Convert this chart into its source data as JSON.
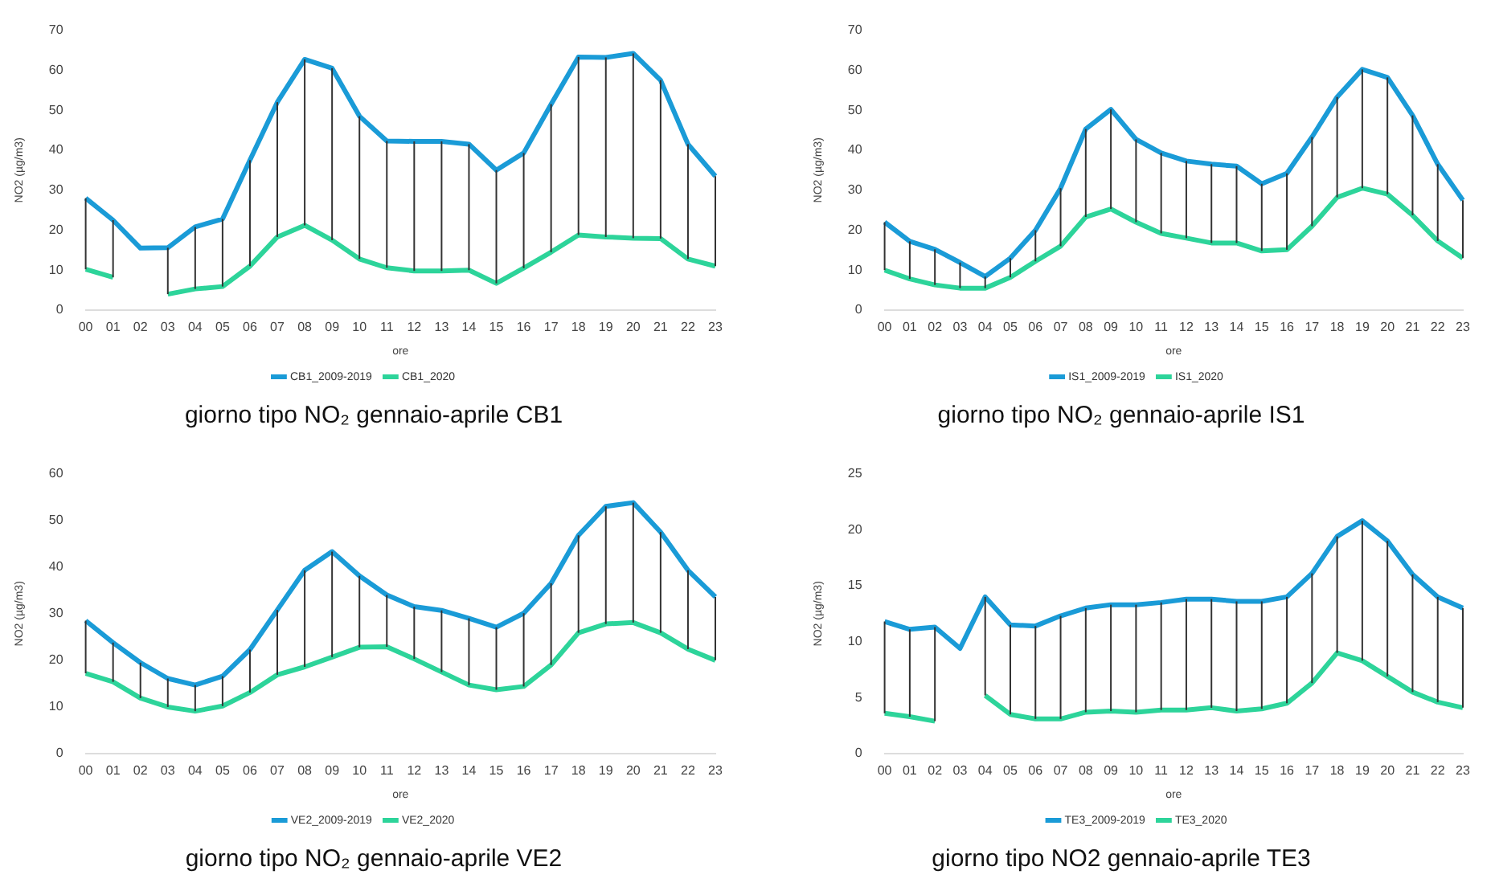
{
  "chart_data": [
    {
      "type": "line",
      "title": "giorno tipo NO₂ gennaio-aprile CB1",
      "xlabel": "ore",
      "ylabel": "NO2 (µg/m3)",
      "categories": [
        "00",
        "01",
        "02",
        "03",
        "04",
        "05",
        "06",
        "07",
        "08",
        "09",
        "10",
        "11",
        "12",
        "13",
        "14",
        "15",
        "16",
        "17",
        "18",
        "19",
        "20",
        "21",
        "22",
        "23"
      ],
      "ylim": [
        0,
        70
      ],
      "yticks": [
        0,
        10,
        20,
        30,
        40,
        50,
        60,
        70
      ],
      "grid": false,
      "legend": "bottom",
      "marker": "none",
      "series": [
        {
          "name": "CB1_2009-2019",
          "color": "#1a9bd7",
          "values": [
            28,
            22.5,
            15.5,
            15.6,
            20.8,
            22.8,
            37.5,
            52,
            62.7,
            60.5,
            48.5,
            42.3,
            42.2,
            42.2,
            41.5,
            35,
            39.3,
            51.5,
            63.3,
            63.2,
            64.2,
            57.5,
            41.5,
            33.5
          ],
          "errors": [
            [
              10.2,
              28
            ],
            [
              8.2,
              22.5
            ],
            null,
            [
              4,
              15.6
            ],
            [
              5.3,
              20.8
            ],
            [
              5.9,
              22.8
            ],
            [
              11,
              37.5
            ],
            [
              18.3,
              52
            ],
            [
              21.2,
              62.7
            ],
            [
              17.5,
              60.5
            ],
            [
              12.8,
              48.5
            ],
            [
              10.6,
              42.3
            ],
            [
              9.8,
              42.2
            ],
            [
              9.8,
              42.2
            ],
            [
              10,
              41.5
            ],
            [
              6.7,
              35
            ],
            [
              10.5,
              39.3
            ],
            [
              14.5,
              51.5
            ],
            [
              18.8,
              63.3
            ],
            [
              18.3,
              63.2
            ],
            [
              18,
              64.2
            ],
            [
              17.9,
              57.5
            ],
            [
              12.8,
              41.5
            ],
            [
              11,
              33.5
            ]
          ]
        },
        {
          "name": "CB1_2020",
          "color": "#2dd49a",
          "values": [
            10.2,
            8.2,
            null,
            4,
            5.3,
            5.9,
            11,
            18.3,
            21.2,
            17.5,
            12.8,
            10.6,
            9.8,
            9.8,
            10,
            6.7,
            10.5,
            14.5,
            18.8,
            18.3,
            18,
            17.9,
            12.8,
            11
          ]
        }
      ]
    },
    {
      "type": "line",
      "title": "giorno tipo NO₂ gennaio-aprile IS1",
      "xlabel": "ore",
      "ylabel": "NO2 (µg/m3)",
      "categories": [
        "00",
        "01",
        "02",
        "03",
        "04",
        "05",
        "06",
        "07",
        "08",
        "09",
        "10",
        "11",
        "12",
        "13",
        "14",
        "15",
        "16",
        "17",
        "18",
        "19",
        "20",
        "21",
        "22",
        "23"
      ],
      "ylim": [
        0,
        70
      ],
      "yticks": [
        0,
        10,
        20,
        30,
        40,
        50,
        60,
        70
      ],
      "grid": false,
      "legend": "bottom",
      "marker": "none",
      "series": [
        {
          "name": "IS1_2009-2019",
          "color": "#1a9bd7",
          "values": [
            22,
            17.2,
            15.2,
            11.9,
            8.4,
            13,
            20,
            30.5,
            45.3,
            50.2,
            42.7,
            39.3,
            37.3,
            36.5,
            36,
            31.6,
            34.2,
            43.3,
            53.3,
            60.2,
            58.2,
            48.7,
            36.5,
            27.5
          ],
          "errors": [
            [
              10,
              22
            ],
            [
              7.8,
              17.2
            ],
            [
              6.3,
              15.2
            ],
            [
              5.5,
              11.9
            ],
            [
              5.5,
              8.4
            ],
            [
              8.2,
              13
            ],
            [
              12.2,
              20
            ],
            [
              16,
              30.5
            ],
            [
              23.3,
              45.3
            ],
            [
              25.3,
              50.2
            ],
            [
              22,
              42.7
            ],
            [
              19.2,
              39.3
            ],
            [
              18,
              37.3
            ],
            [
              16.8,
              36.5
            ],
            [
              16.8,
              36
            ],
            [
              14.8,
              31.6
            ],
            [
              15.1,
              34.2
            ],
            [
              21,
              43.3
            ],
            [
              28.2,
              53.3
            ],
            [
              30.5,
              60.2
            ],
            [
              29,
              58.2
            ],
            [
              23.7,
              48.7
            ],
            [
              17.3,
              36.5
            ],
            [
              13,
              27.5
            ]
          ]
        },
        {
          "name": "IS1_2020",
          "color": "#2dd49a",
          "values": [
            10,
            7.8,
            6.3,
            5.5,
            5.5,
            8.2,
            12.2,
            16,
            23.3,
            25.3,
            22,
            19.2,
            18,
            16.8,
            16.8,
            14.8,
            15.1,
            21,
            28.2,
            30.5,
            29,
            23.7,
            17.3,
            13
          ]
        }
      ]
    },
    {
      "type": "line",
      "title": "giorno tipo NO₂ gennaio-aprile VE2",
      "xlabel": "ore",
      "ylabel": "NO2 (µg/m3)",
      "categories": [
        "00",
        "01",
        "02",
        "03",
        "04",
        "05",
        "06",
        "07",
        "08",
        "09",
        "10",
        "11",
        "12",
        "13",
        "14",
        "15",
        "16",
        "17",
        "18",
        "19",
        "20",
        "21",
        "22",
        "23"
      ],
      "ylim": [
        0,
        60
      ],
      "yticks": [
        0,
        10,
        20,
        30,
        40,
        50,
        60
      ],
      "grid": false,
      "legend": "bottom",
      "marker": "none",
      "series": [
        {
          "name": "VE2_2009-2019",
          "color": "#1a9bd7",
          "values": [
            28.5,
            23.8,
            19.5,
            16.1,
            14.7,
            16.6,
            22.3,
            30.8,
            39.3,
            43.3,
            38.1,
            34,
            31.5,
            30.7,
            29,
            27.1,
            30.1,
            36.5,
            46.8,
            53,
            53.8,
            47.5,
            39.3,
            33.6
          ],
          "errors": [
            [
              17.2,
              28.5
            ],
            [
              15.4,
              23.8
            ],
            [
              11.9,
              19.5
            ],
            [
              10,
              16.1
            ],
            [
              9.1,
              14.7
            ],
            [
              10.2,
              16.6
            ],
            [
              13.1,
              22.3
            ],
            [
              16.9,
              30.8
            ],
            [
              18.6,
              39.3
            ],
            [
              20.7,
              43.3
            ],
            [
              22.8,
              38.1
            ],
            [
              22.9,
              34
            ],
            [
              20.3,
              31.5
            ],
            [
              17.5,
              30.7
            ],
            [
              14.7,
              29
            ],
            [
              13.7,
              27.1
            ],
            [
              14.4,
              30.1
            ],
            [
              19,
              36.5
            ],
            [
              25.9,
              46.8
            ],
            [
              27.8,
              53
            ],
            [
              28.1,
              53.8
            ],
            [
              25.9,
              47.5
            ],
            [
              22.4,
              39.3
            ],
            [
              20,
              33.6
            ]
          ]
        },
        {
          "name": "VE2_2020",
          "color": "#2dd49a",
          "values": [
            17.2,
            15.4,
            11.9,
            10,
            9.1,
            10.2,
            13.1,
            16.9,
            18.6,
            20.7,
            22.8,
            22.9,
            20.3,
            17.5,
            14.7,
            13.7,
            14.4,
            19,
            25.9,
            27.8,
            28.1,
            25.9,
            22.4,
            20
          ]
        }
      ]
    },
    {
      "type": "line",
      "title": "giorno tipo NO2 gennaio-aprile TE3",
      "xlabel": "ore",
      "ylabel": "NO2 (µg/m3)",
      "categories": [
        "00",
        "01",
        "02",
        "03",
        "04",
        "05",
        "06",
        "07",
        "08",
        "09",
        "10",
        "11",
        "12",
        "13",
        "14",
        "15",
        "16",
        "17",
        "18",
        "19",
        "20",
        "21",
        "22",
        "23"
      ],
      "ylim": [
        0,
        25
      ],
      "yticks": [
        0,
        5,
        10,
        15,
        20,
        25
      ],
      "grid": false,
      "legend": "bottom",
      "marker": "none",
      "series": [
        {
          "name": "TE3_2009-2019",
          "color": "#1a9bd7",
          "values": [
            11.8,
            11.1,
            11.3,
            9.4,
            14,
            11.5,
            11.4,
            12.3,
            13,
            13.3,
            13.3,
            13.5,
            13.8,
            13.8,
            13.6,
            13.6,
            14,
            16.1,
            19.4,
            20.8,
            19,
            16,
            14,
            13
          ],
          "errors": [
            [
              3.6,
              11.8
            ],
            [
              3.3,
              11.1
            ],
            [
              2.9,
              11.3
            ],
            null,
            [
              5.2,
              14
            ],
            [
              3.5,
              11.5
            ],
            [
              3.1,
              11.4
            ],
            [
              3.1,
              12.3
            ],
            [
              3.7,
              13
            ],
            [
              3.8,
              13.3
            ],
            [
              3.7,
              13.3
            ],
            [
              3.9,
              13.5
            ],
            [
              3.9,
              13.8
            ],
            [
              4.1,
              13.8
            ],
            [
              3.8,
              13.6
            ],
            [
              4,
              13.6
            ],
            [
              4.5,
              14
            ],
            [
              6.3,
              16.1
            ],
            [
              9,
              19.4
            ],
            [
              8.3,
              20.8
            ],
            [
              6.9,
              19
            ],
            [
              5.5,
              16
            ],
            [
              4.6,
              14
            ],
            [
              4.1,
              13
            ]
          ]
        },
        {
          "name": "TE3_2020",
          "color": "#2dd49a",
          "values": [
            3.6,
            3.3,
            2.9,
            null,
            5.2,
            3.5,
            3.1,
            3.1,
            3.7,
            3.8,
            3.7,
            3.9,
            3.9,
            4.1,
            3.8,
            4,
            4.5,
            6.3,
            9,
            8.3,
            6.9,
            5.5,
            4.6,
            4.1
          ]
        }
      ]
    }
  ]
}
